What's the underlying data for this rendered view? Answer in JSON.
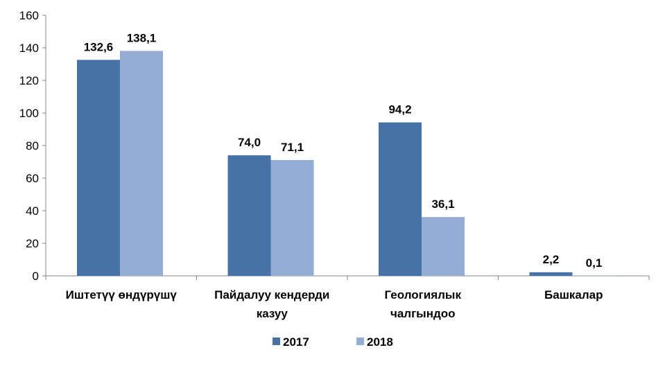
{
  "chart_data": {
    "type": "bar",
    "title": "",
    "xlabel": "",
    "ylabel": "",
    "ylim": [
      0,
      160
    ],
    "yticks": [
      "0",
      "20",
      "40",
      "60",
      "80",
      "100",
      "120",
      "140",
      "160"
    ],
    "categories": [
      [
        "Иштетүү өндүрүшү"
      ],
      [
        "Пайдалуу кендерди",
        "казуу"
      ],
      [
        "Геологиялык",
        "чалгындоо"
      ],
      [
        "Башкалар"
      ]
    ],
    "series": [
      {
        "name": "2017",
        "color": "#4672A8",
        "values": [
          132.6,
          74.0,
          94.2,
          2.2
        ],
        "labels": [
          "132,6",
          "74,0",
          "94,2",
          "2,2"
        ]
      },
      {
        "name": "2018",
        "color": "#95ACD4",
        "values": [
          138.1,
          71.1,
          36.1,
          0.1
        ],
        "labels": [
          "138,1",
          "71,1",
          "36,1",
          "0,1"
        ]
      }
    ],
    "legend": "bottom",
    "grid": false
  }
}
